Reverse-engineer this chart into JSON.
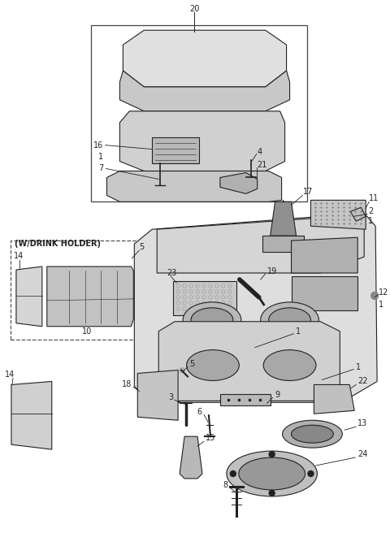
{
  "bg_color": "#ffffff",
  "line_color": "#222222",
  "fig_width": 4.8,
  "fig_height": 6.72,
  "dpi": 100,
  "font_size": 7
}
